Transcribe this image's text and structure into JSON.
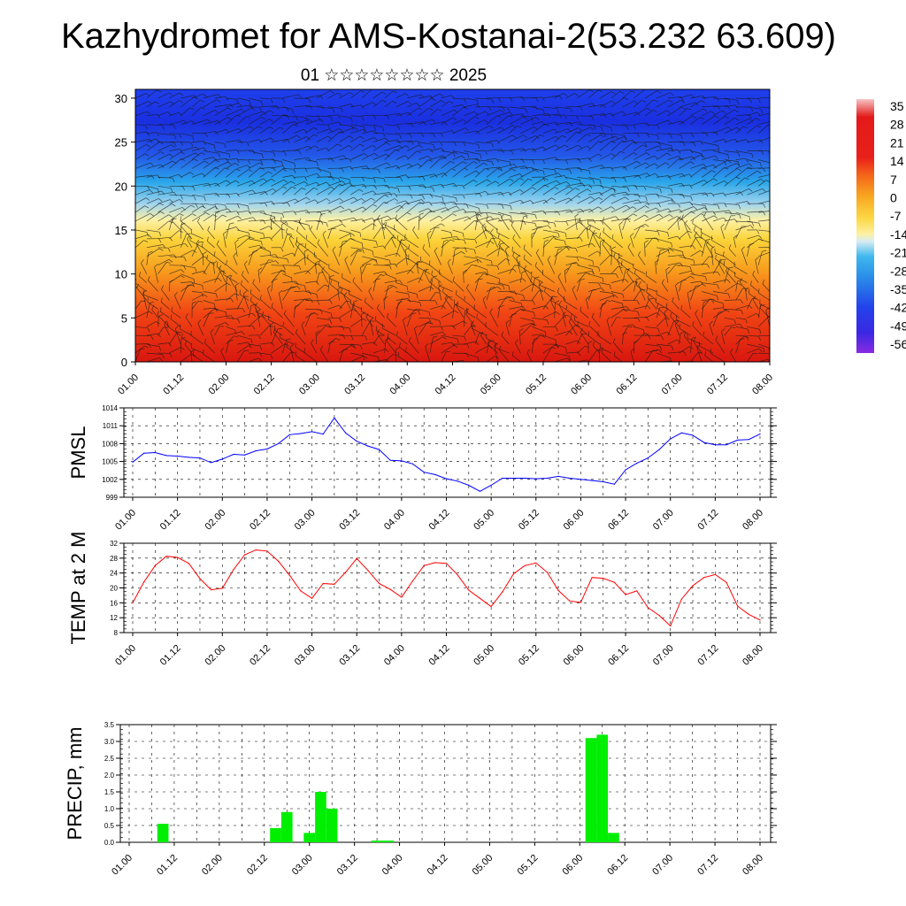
{
  "title": "Kazhydromet for AMS-Kostanai-2(53.232 63.609)",
  "subtitle": "01 ☆☆☆☆☆☆☆☆ 2025",
  "time_ticks": [
    "01.00",
    "01.12",
    "02.00",
    "02.12",
    "03.00",
    "03.12",
    "04.00",
    "04.12",
    "05.00",
    "05.12",
    "06.00",
    "06.12",
    "07.00",
    "07.12",
    "08.00"
  ],
  "chart_data": [
    {
      "type": "heatmap",
      "name": "upper",
      "ylim": [
        0,
        31
      ],
      "yticks": [
        0,
        5,
        10,
        15,
        20,
        25,
        30
      ],
      "x": [
        "01.00",
        "01.12",
        "02.00",
        "02.12",
        "03.00",
        "03.12",
        "04.00",
        "04.12",
        "05.00",
        "05.12",
        "06.00",
        "06.12",
        "07.00",
        "07.12",
        "08.00"
      ],
      "colorbar": {
        "labels": [
          "35",
          "28",
          "21",
          "14",
          "7",
          "0",
          "-7",
          "-14",
          "-21",
          "-28",
          "-35",
          "-42",
          "-49",
          "-56"
        ],
        "range": [
          -60,
          38
        ],
        "stops": [
          "#7b2bd6",
          "#1d3cf2",
          "#2a82e6",
          "#27b8ef",
          "#bde1f0",
          "#fdf1a0",
          "#fbd23c",
          "#f7a21c",
          "#f4621a",
          "#e11a12",
          "#c20d0d",
          "#f7c6c6"
        ]
      },
      "levels": [
        0,
        5,
        10,
        15,
        20,
        25,
        30
      ],
      "value_matrix_profile": [
        26,
        18,
        8,
        -2,
        -22,
        -45,
        -50
      ]
    },
    {
      "type": "line",
      "name": "pmsl",
      "ylabel": "PMSL",
      "ylim": [
        999,
        1014
      ],
      "yticks": [
        999,
        1002,
        1005,
        1008,
        1011,
        1014
      ],
      "color": "#0000ff",
      "x": [
        "01.00",
        "01.03",
        "01.06",
        "01.09",
        "01.12",
        "01.15",
        "01.18",
        "01.21",
        "02.00",
        "02.03",
        "02.06",
        "02.09",
        "02.12",
        "02.15",
        "02.18",
        "02.21",
        "03.00",
        "03.03",
        "03.06",
        "03.09",
        "03.12",
        "03.15",
        "03.18",
        "03.21",
        "04.00",
        "04.03",
        "04.06",
        "04.09",
        "04.12",
        "04.15",
        "04.18",
        "04.21",
        "05.00",
        "05.03",
        "05.06",
        "05.09",
        "05.12",
        "05.15",
        "05.18",
        "05.21",
        "06.00",
        "06.03",
        "06.06",
        "06.09",
        "06.12",
        "06.15",
        "06.18",
        "06.21",
        "07.00",
        "07.03",
        "07.06",
        "07.09",
        "07.12",
        "07.15",
        "07.18",
        "07.21",
        "08.00"
      ],
      "values": [
        1004.9,
        1006.4,
        1006.5,
        1006.0,
        1005.9,
        1005.7,
        1005.6,
        1004.8,
        1005.4,
        1006.2,
        1006.1,
        1006.8,
        1007.1,
        1008.0,
        1009.5,
        1009.7,
        1010.0,
        1009.6,
        1012.3,
        1009.8,
        1008.4,
        1007.6,
        1007.0,
        1005.2,
        1005.1,
        1004.6,
        1003.2,
        1002.8,
        1002.1,
        1001.7,
        1001.0,
        1000.0,
        1001.0,
        1002.2,
        1002.2,
        1002.2,
        1002.1,
        1002.2,
        1002.5,
        1002.2,
        1002.0,
        1001.8,
        1001.6,
        1001.2,
        1003.6,
        1004.7,
        1005.6,
        1007.0,
        1008.8,
        1009.8,
        1009.4,
        1008.2,
        1007.8,
        1007.8,
        1008.6,
        1008.7,
        1009.6
      ]
    },
    {
      "type": "line",
      "name": "temp",
      "ylabel": "TEMP at 2 M",
      "ylim": [
        8,
        32
      ],
      "yticks": [
        8,
        12,
        16,
        20,
        24,
        28,
        32
      ],
      "color": "#ff0000",
      "x": [
        "01.00",
        "01.03",
        "01.06",
        "01.09",
        "01.12",
        "01.15",
        "01.18",
        "01.21",
        "02.00",
        "02.03",
        "02.06",
        "02.09",
        "02.12",
        "02.15",
        "02.18",
        "02.21",
        "03.00",
        "03.03",
        "03.06",
        "03.09",
        "03.12",
        "03.15",
        "03.18",
        "03.21",
        "04.00",
        "04.03",
        "04.06",
        "04.09",
        "04.12",
        "04.15",
        "04.18",
        "04.21",
        "05.00",
        "05.03",
        "05.06",
        "05.09",
        "05.12",
        "05.15",
        "05.18",
        "05.21",
        "06.00",
        "06.03",
        "06.06",
        "06.09",
        "06.12",
        "06.15",
        "06.18",
        "06.21",
        "07.00",
        "07.03",
        "07.06",
        "07.09",
        "07.12",
        "07.15",
        "07.18",
        "07.21",
        "08.00"
      ],
      "values": [
        16.0,
        21.6,
        26.0,
        28.5,
        28.2,
        26.6,
        22.5,
        19.5,
        19.9,
        24.9,
        28.9,
        30.2,
        29.9,
        27.2,
        23.4,
        19.2,
        17.2,
        21.2,
        21.0,
        24.2,
        27.9,
        24.7,
        21.2,
        19.6,
        17.5,
        21.9,
        26.0,
        26.8,
        26.6,
        23.5,
        19.4,
        17.2,
        15.0,
        18.9,
        23.8,
        26.0,
        26.7,
        24.2,
        19.3,
        16.5,
        16.1,
        22.8,
        22.6,
        21.5,
        18.2,
        19.2,
        14.7,
        12.6,
        9.8,
        17.0,
        20.6,
        22.8,
        23.6,
        21.5,
        15.1,
        12.9,
        11.4
      ]
    },
    {
      "type": "bar",
      "name": "precip",
      "ylabel": "PRECIP, mm",
      "ylim": [
        0,
        3.5
      ],
      "yticks": [
        0.0,
        0.5,
        1.0,
        1.5,
        2.0,
        2.5,
        3.0,
        3.5
      ],
      "color": "#00ee00",
      "x": [
        "01.09",
        "02.15",
        "02.18",
        "03.00",
        "03.03",
        "03.06",
        "03.18",
        "03.21",
        "06.03",
        "06.06",
        "06.09"
      ],
      "values": [
        0.55,
        0.42,
        0.9,
        0.28,
        1.5,
        1.0,
        0.05,
        0.05,
        3.1,
        3.2,
        0.28
      ]
    }
  ]
}
